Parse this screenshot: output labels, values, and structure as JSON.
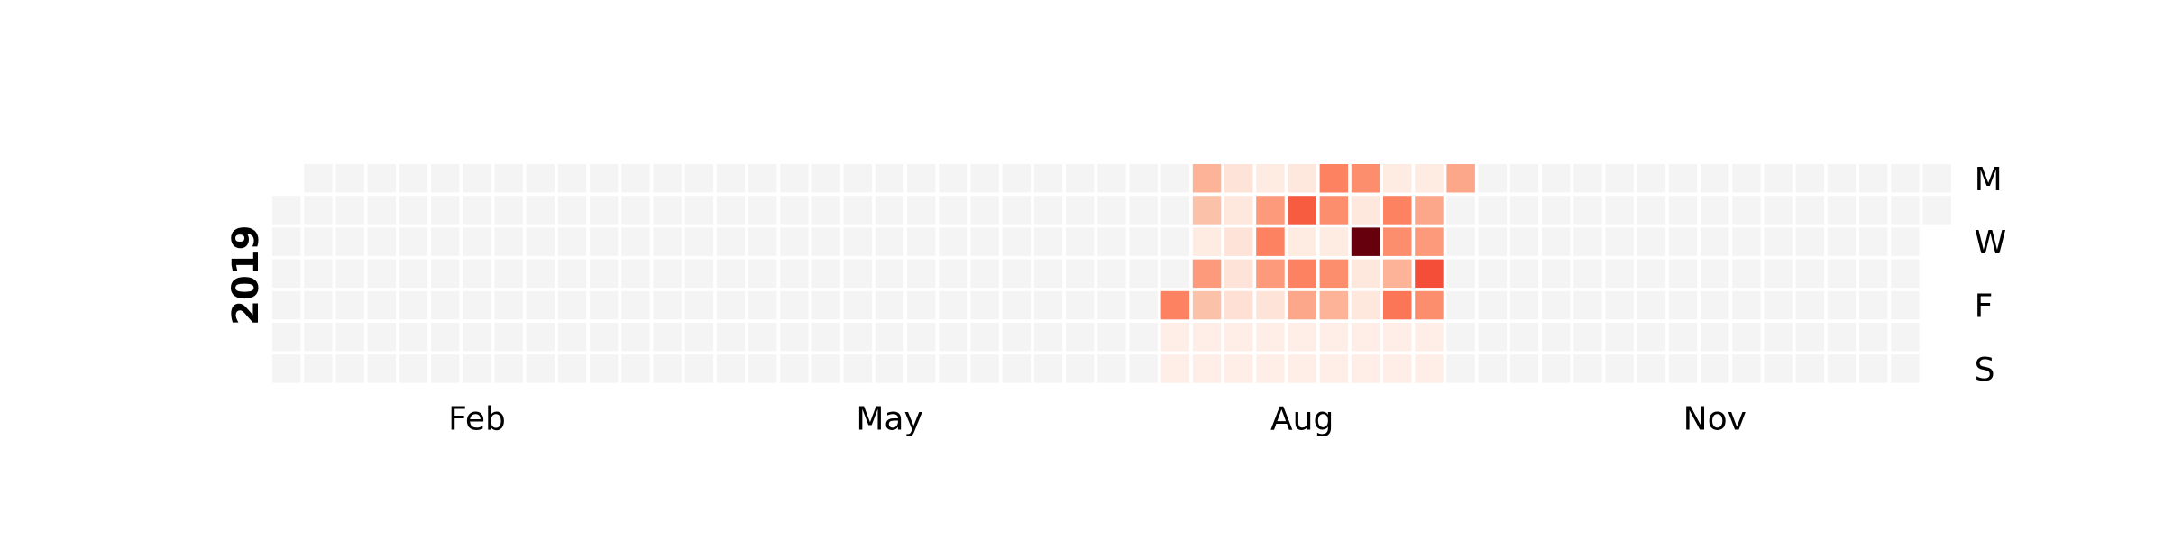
{
  "chart_data": {
    "type": "heatmap",
    "year": "2019",
    "month_labels": [
      {
        "label": "Feb",
        "week": 6
      },
      {
        "label": "May",
        "week": 19
      },
      {
        "label": "Aug",
        "week": 32
      },
      {
        "label": "Nov",
        "week": 45
      }
    ],
    "day_labels": [
      {
        "label": "M",
        "day": 0
      },
      {
        "label": "W",
        "day": 2
      },
      {
        "label": "F",
        "day": 4
      },
      {
        "label": "S",
        "day": 6
      }
    ],
    "empty_color": "#f4f4f4",
    "colorscale": [
      "#fff5f0",
      "#fcbba1",
      "#fc9272",
      "#fb6a4a",
      "#ef3b2c",
      "#cb181d",
      "#67000d"
    ],
    "max_value": 10,
    "weeks": 53,
    "first_day_offset": 1,
    "last_day_index": 364,
    "values": [
      {
        "week": 28,
        "day": 4,
        "value": 4
      },
      {
        "week": 29,
        "day": 0,
        "value": 2
      },
      {
        "week": 29,
        "day": 1,
        "value": 1.5
      },
      {
        "week": 29,
        "day": 2,
        "value": 0.3
      },
      {
        "week": 29,
        "day": 3,
        "value": 3
      },
      {
        "week": 29,
        "day": 4,
        "value": 1.5
      },
      {
        "week": 30,
        "day": 0,
        "value": 0.5
      },
      {
        "week": 30,
        "day": 1,
        "value": 0.4
      },
      {
        "week": 30,
        "day": 2,
        "value": 0.5
      },
      {
        "week": 30,
        "day": 3,
        "value": 0.5
      },
      {
        "week": 30,
        "day": 4,
        "value": 0.6
      },
      {
        "week": 31,
        "day": 0,
        "value": 0.3
      },
      {
        "week": 31,
        "day": 1,
        "value": 3
      },
      {
        "week": 31,
        "day": 2,
        "value": 4
      },
      {
        "week": 31,
        "day": 3,
        "value": 3
      },
      {
        "week": 31,
        "day": 4,
        "value": 0.5
      },
      {
        "week": 32,
        "day": 0,
        "value": 0.4
      },
      {
        "week": 32,
        "day": 1,
        "value": 5.5
      },
      {
        "week": 32,
        "day": 2,
        "value": 0.3
      },
      {
        "week": 32,
        "day": 3,
        "value": 4
      },
      {
        "week": 32,
        "day": 4,
        "value": 2.5
      },
      {
        "week": 33,
        "day": 0,
        "value": 4
      },
      {
        "week": 33,
        "day": 1,
        "value": 3.5
      },
      {
        "week": 33,
        "day": 2,
        "value": 0.3
      },
      {
        "week": 33,
        "day": 3,
        "value": 3.5
      },
      {
        "week": 33,
        "day": 4,
        "value": 2
      },
      {
        "week": 34,
        "day": 0,
        "value": 3.5
      },
      {
        "week": 34,
        "day": 1,
        "value": 0.4
      },
      {
        "week": 34,
        "day": 2,
        "value": 10
      },
      {
        "week": 34,
        "day": 3,
        "value": 0.4
      },
      {
        "week": 34,
        "day": 4,
        "value": 0.4
      },
      {
        "week": 35,
        "day": 0,
        "value": 0.3
      },
      {
        "week": 35,
        "day": 1,
        "value": 4
      },
      {
        "week": 35,
        "day": 2,
        "value": 3.5
      },
      {
        "week": 35,
        "day": 3,
        "value": 2
      },
      {
        "week": 35,
        "day": 4,
        "value": 4.5
      },
      {
        "week": 36,
        "day": 0,
        "value": 0.3
      },
      {
        "week": 36,
        "day": 1,
        "value": 2.5
      },
      {
        "week": 36,
        "day": 2,
        "value": 3
      },
      {
        "week": 36,
        "day": 3,
        "value": 6
      },
      {
        "week": 36,
        "day": 4,
        "value": 3.5
      },
      {
        "week": 37,
        "day": 0,
        "value": 2.5
      }
    ],
    "pale_range": {
      "start_week": 28,
      "end_week": 36,
      "days": [
        5,
        6
      ],
      "value": 0.2
    }
  }
}
